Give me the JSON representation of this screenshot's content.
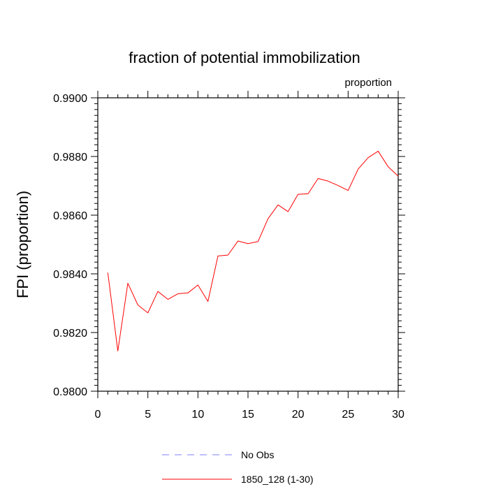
{
  "chart_data": {
    "type": "line",
    "title": "fraction of potential immobilization",
    "unit_label": "proportion",
    "ylabel": "FPI  (proportion)",
    "xlabel": "",
    "xlim": [
      0,
      30
    ],
    "ylim": [
      0.98,
      0.99
    ],
    "x_ticks": [
      0,
      5,
      10,
      15,
      20,
      25,
      30
    ],
    "x_tick_labels": [
      "0",
      "5",
      "10",
      "15",
      "20",
      "25",
      "30"
    ],
    "y_ticks": [
      0.98,
      0.982,
      0.984,
      0.986,
      0.988,
      0.99
    ],
    "y_tick_labels": [
      "0.9800",
      "0.9820",
      "0.9840",
      "0.9860",
      "0.9880",
      "0.9900"
    ],
    "x_minor_step": 1,
    "y_minor_step": 0.0002,
    "grid": false,
    "legend_position": "bottom",
    "series": [
      {
        "name": "No Obs",
        "color": "#8080ff",
        "dash": "dashed",
        "x": [],
        "values": []
      },
      {
        "name": "1850_128 (1-30)",
        "color": "#ff0000",
        "dash": "solid",
        "x": [
          1,
          2,
          3,
          4,
          5,
          6,
          7,
          8,
          9,
          10,
          11,
          12,
          13,
          14,
          15,
          16,
          17,
          18,
          19,
          20,
          21,
          22,
          23,
          24,
          25,
          26,
          27,
          28,
          29,
          30
        ],
        "values": [
          0.98404,
          0.98137,
          0.98368,
          0.98294,
          0.98267,
          0.9834,
          0.98313,
          0.98332,
          0.98335,
          0.98362,
          0.98306,
          0.98461,
          0.98464,
          0.98512,
          0.98503,
          0.9851,
          0.98588,
          0.98635,
          0.98612,
          0.98671,
          0.98673,
          0.98725,
          0.98716,
          0.98701,
          0.98684,
          0.98757,
          0.98796,
          0.98818,
          0.98765,
          0.98733
        ]
      }
    ]
  }
}
